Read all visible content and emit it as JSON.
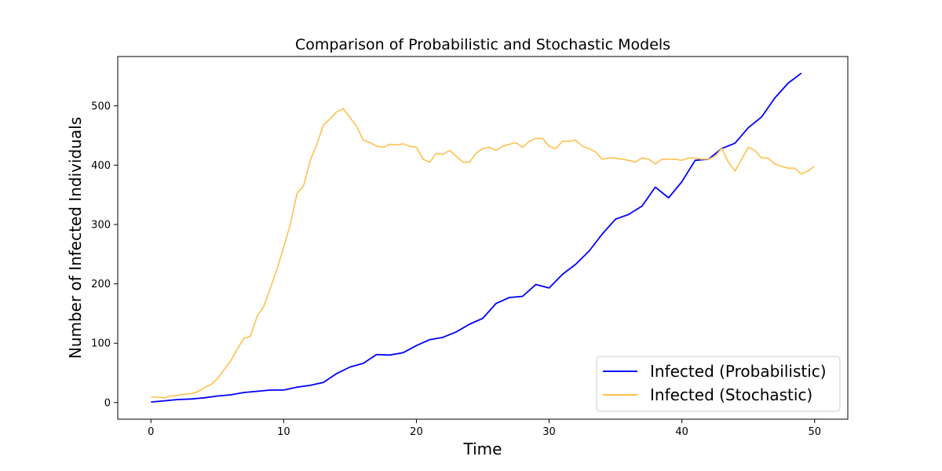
{
  "chart_data": {
    "type": "line",
    "title": "Comparison of Probabilistic and Stochastic Models",
    "xlabel": "Time",
    "ylabel": "Number of Infected Individuals",
    "xlim": [
      -2.5,
      52.5
    ],
    "ylim": [
      -28,
      583
    ],
    "x_ticks": [
      0,
      10,
      20,
      30,
      40,
      50
    ],
    "y_ticks": [
      0,
      100,
      200,
      300,
      400,
      500
    ],
    "grid": false,
    "legend_position": "lower-right",
    "series": [
      {
        "name": "Infected (Probabilistic)",
        "color": "#0000ff",
        "x": [
          0,
          1,
          2,
          3,
          4,
          5,
          6,
          7,
          8,
          9,
          10,
          11,
          12,
          13,
          14,
          15,
          16,
          17,
          18,
          19,
          20,
          21,
          22,
          23,
          24,
          25,
          26,
          27,
          28,
          29,
          30,
          31,
          32,
          33,
          34,
          35,
          36,
          37,
          38,
          39,
          40,
          41,
          42,
          43,
          44,
          45,
          46,
          47,
          48,
          49
        ],
        "y": [
          1,
          3,
          5,
          6,
          8,
          11,
          13,
          17,
          19,
          21,
          21,
          26,
          29,
          34,
          49,
          60,
          66,
          81,
          80,
          84,
          96,
          106,
          110,
          119,
          132,
          142,
          167,
          177,
          179,
          199,
          193,
          216,
          233,
          255,
          284,
          309,
          317,
          331,
          363,
          345,
          372,
          408,
          410,
          428,
          437,
          463,
          481,
          513,
          538,
          555
        ]
      },
      {
        "name": "Infected (Stochastic)",
        "color": "#ffc04d",
        "x": [
          0,
          0.5,
          1,
          1.5,
          2,
          2.5,
          3,
          3.5,
          4,
          4.5,
          5,
          5.5,
          6,
          6.5,
          7,
          7.5,
          8,
          8.5,
          9,
          9.5,
          10,
          10.5,
          11,
          11.5,
          12,
          12.5,
          13,
          13.5,
          14,
          14.5,
          15,
          15.5,
          16,
          16.5,
          17,
          17.5,
          18,
          18.5,
          19,
          19.5,
          20,
          20.5,
          21,
          21.5,
          22,
          22.5,
          23,
          23.5,
          24,
          24.5,
          25,
          25.5,
          26,
          26.5,
          27,
          27.5,
          28,
          28.5,
          29,
          29.5,
          30,
          30.5,
          31,
          31.5,
          32,
          32.5,
          33,
          33.5,
          34,
          34.5,
          35,
          35.5,
          36,
          36.5,
          37,
          37.5,
          38,
          38.5,
          39,
          39.5,
          40,
          40.5,
          41,
          41.5,
          42,
          42.5,
          43,
          43.5,
          44,
          44.5,
          45,
          45.5,
          46,
          46.5,
          47,
          47.5,
          48,
          48.5,
          49,
          49.5,
          50
        ],
        "y": [
          10,
          9,
          8,
          11,
          12,
          14,
          15,
          18,
          25,
          30,
          40,
          55,
          70,
          90,
          108,
          112,
          145,
          162,
          193,
          225,
          262,
          300,
          352,
          365,
          408,
          435,
          468,
          478,
          490,
          495,
          480,
          465,
          442,
          438,
          432,
          430,
          435,
          434,
          436,
          432,
          430,
          410,
          405,
          420,
          418,
          425,
          415,
          405,
          405,
          420,
          428,
          430,
          425,
          432,
          435,
          438,
          430,
          440,
          445,
          445,
          432,
          428,
          440,
          440,
          442,
          432,
          428,
          422,
          410,
          412,
          412,
          410,
          408,
          405,
          412,
          410,
          402,
          410,
          410,
          410,
          408,
          412,
          412,
          410,
          410,
          415,
          428,
          405,
          390,
          410,
          430,
          425,
          412,
          412,
          402,
          398,
          395,
          395,
          385,
          390,
          398
        ]
      }
    ]
  }
}
